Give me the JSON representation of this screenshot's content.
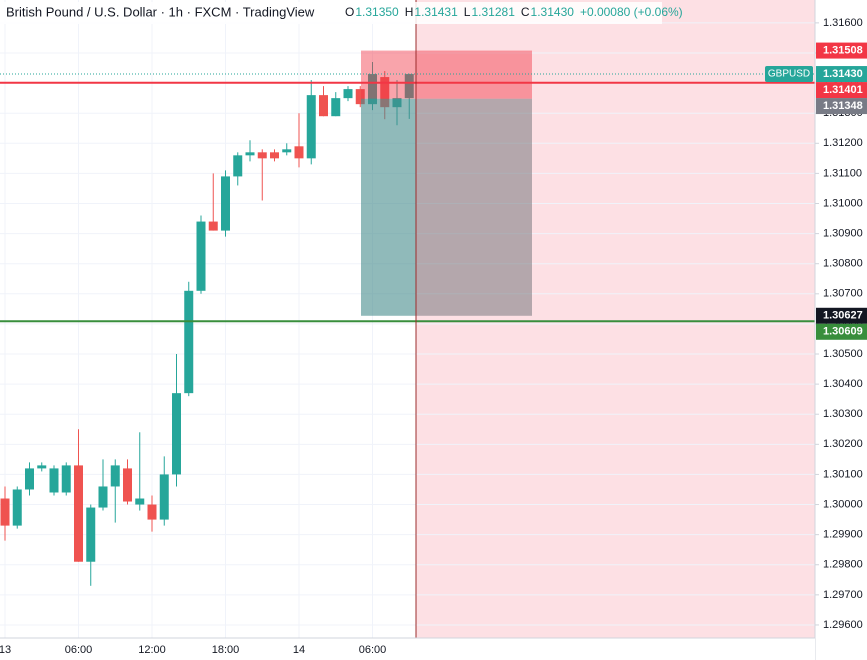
{
  "header": {
    "title": "British Pound / U.S. Dollar · 1h · FXCM · TradingView",
    "ohlc": [
      {
        "key": "O",
        "value": "1.31350"
      },
      {
        "key": "H",
        "value": "1.31431"
      },
      {
        "key": "L",
        "value": "1.31281"
      },
      {
        "key": "C",
        "value": "1.31430"
      }
    ],
    "change": "+0.00080 (+0.06%)"
  },
  "chart_data": {
    "type": "candlestick",
    "categories": [
      "13",
      null,
      null,
      null,
      null,
      null,
      "06:00",
      null,
      null,
      null,
      null,
      null,
      "12:00",
      null,
      null,
      null,
      null,
      null,
      "18:00",
      null,
      null,
      null,
      null,
      null,
      "14",
      null,
      null,
      null,
      null,
      null,
      "06:00",
      null,
      null,
      null
    ],
    "open": [
      1.3002,
      1.2993,
      1.3005,
      1.3012,
      1.3004,
      1.3004,
      1.3013,
      1.2981,
      1.2999,
      1.3006,
      1.3012,
      1.3,
      1.3,
      1.2995,
      1.301,
      1.3037,
      1.3071,
      1.3094,
      1.3091,
      1.3109,
      1.3116,
      1.3117,
      1.3117,
      1.3117,
      1.3119,
      1.3115,
      1.3136,
      1.3129,
      1.3135,
      1.3138,
      1.3133,
      1.3142,
      1.3132,
      1.3135
    ],
    "high": [
      1.3006,
      1.3006,
      1.3014,
      1.3014,
      1.3013,
      1.3014,
      1.3025,
      1.3,
      1.3015,
      1.3015,
      1.3015,
      1.3024,
      1.3003,
      1.3016,
      1.305,
      1.3074,
      1.3096,
      1.311,
      1.3111,
      1.3117,
      1.3121,
      1.3118,
      1.3118,
      1.312,
      1.313,
      1.3141,
      1.3139,
      1.3137,
      1.3139,
      1.3139,
      1.3147,
      1.3144,
      1.3141,
      1.31431
    ],
    "low": [
      1.2988,
      1.2992,
      1.3003,
      1.3011,
      1.3003,
      1.3003,
      1.2981,
      1.2973,
      1.2998,
      1.2994,
      1.3,
      1.2998,
      1.2991,
      1.2993,
      1.3006,
      1.3036,
      1.307,
      1.3091,
      1.3089,
      1.3106,
      1.3114,
      1.3101,
      1.3114,
      1.3116,
      1.3112,
      1.3113,
      1.3129,
      1.3129,
      1.3134,
      1.3132,
      1.3131,
      1.3128,
      1.3126,
      1.31281
    ],
    "close": [
      1.2993,
      1.3005,
      1.3012,
      1.3013,
      1.3012,
      1.3013,
      1.2981,
      1.2999,
      1.3006,
      1.3013,
      1.3001,
      1.3002,
      1.2995,
      1.301,
      1.3037,
      1.3071,
      1.3094,
      1.3091,
      1.3109,
      1.3116,
      1.3117,
      1.3115,
      1.3115,
      1.3118,
      1.3115,
      1.3136,
      1.3129,
      1.3135,
      1.3138,
      1.3133,
      1.3143,
      1.3132,
      1.3135,
      1.3143
    ],
    "up_color": "#26a69a",
    "down_color": "#ef5350",
    "ylim": [
      1.2955,
      1.31676
    ],
    "yticks": [
      {
        "value": 1.296,
        "label": "1.29600"
      },
      {
        "value": 1.297,
        "label": "1.29700"
      },
      {
        "value": 1.298,
        "label": "1.29800"
      },
      {
        "value": 1.299,
        "label": "1.29900"
      },
      {
        "value": 1.3,
        "label": "1.30000"
      },
      {
        "value": 1.301,
        "label": "1.30100"
      },
      {
        "value": 1.302,
        "label": "1.30200"
      },
      {
        "value": 1.303,
        "label": "1.30300"
      },
      {
        "value": 1.304,
        "label": "1.30400"
      },
      {
        "value": 1.305,
        "label": "1.30500"
      },
      {
        "value": 1.306,
        "label": "1.30600"
      },
      {
        "value": 1.307,
        "label": "1.30700"
      },
      {
        "value": 1.308,
        "label": "1.30800"
      },
      {
        "value": 1.309,
        "label": "1.30900"
      },
      {
        "value": 1.31,
        "label": "1.31000"
      },
      {
        "value": 1.311,
        "label": "1.31100"
      },
      {
        "value": 1.312,
        "label": "1.31200"
      },
      {
        "value": 1.313,
        "label": "1.31300"
      },
      {
        "value": 1.314,
        "label": "1.31400"
      },
      {
        "value": 1.315,
        "label": "1.31500"
      },
      {
        "value": 1.316,
        "label": "1.31600"
      }
    ],
    "grid": true,
    "price_labels": [
      {
        "value": 1.31508,
        "label": "1.31508",
        "color": "#f23645",
        "zone": "stop"
      },
      {
        "value": 1.3143,
        "label": "1.31430",
        "color": "#26a69a",
        "tag": "GBPUSD",
        "line": "dotted"
      },
      {
        "value": 1.31401,
        "label": "1.31401",
        "color": "#f23645",
        "line": "solid"
      },
      {
        "value": 1.31348,
        "label": "1.31348",
        "color": "#787b86",
        "zone": "entry"
      },
      {
        "value": 1.30627,
        "label": "1.30627",
        "color": "#131722",
        "zone": "target"
      },
      {
        "value": 1.30609,
        "label": "1.30609",
        "color": "#388e3c",
        "line": "solid"
      }
    ]
  }
}
